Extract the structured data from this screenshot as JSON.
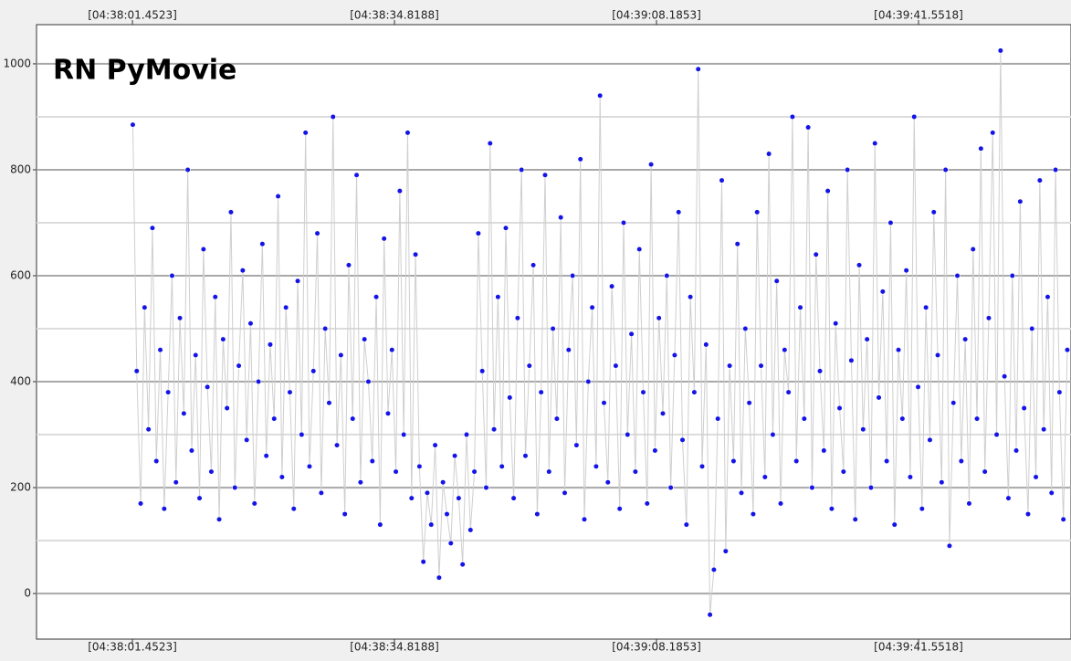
{
  "chart_data": {
    "type": "scatter",
    "title": "RN PyMovie",
    "xlim": [
      16669.24,
      16800.97
    ],
    "xticks": [
      {
        "value": 16681.4523,
        "label": "[04:38:01.4523]"
      },
      {
        "value": 16714.8188,
        "label": "[04:38:34.8188]"
      },
      {
        "value": 16748.1853,
        "label": "[04:39:08.1853]"
      },
      {
        "value": 16781.5518,
        "label": "[04:39:41.5518]"
      }
    ],
    "ylim": [
      -86,
      1074
    ],
    "yticks": [
      0,
      200,
      400,
      600,
      800,
      1000
    ],
    "minor_yticks": [
      100,
      300,
      500,
      700,
      900
    ],
    "grid": true,
    "series": [
      {
        "color": "#1414e6",
        "line_color": "#cfcfcf",
        "x": [
          16681.5,
          16682,
          16682.5,
          16683,
          16683.5,
          16684,
          16684.5,
          16685,
          16685.5,
          16686,
          16686.5,
          16687,
          16687.5,
          16688,
          16688.5,
          16689,
          16689.5,
          16690,
          16690.5,
          16691,
          16691.5,
          16692,
          16692.5,
          16693,
          16693.5,
          16694,
          16694.5,
          16695,
          16695.5,
          16696,
          16696.5,
          16697,
          16697.5,
          16698,
          16698.5,
          16699,
          16699.5,
          16700,
          16700.5,
          16701,
          16701.5,
          16702,
          16702.5,
          16703,
          16703.5,
          16704,
          16704.5,
          16705,
          16705.5,
          16706,
          16706.5,
          16707,
          16707.5,
          16708,
          16708.5,
          16709,
          16709.5,
          16710,
          16710.5,
          16711,
          16711.5,
          16712,
          16712.5,
          16713,
          16713.5,
          16714,
          16714.5,
          16715,
          16715.5,
          16716,
          16716.5,
          16717,
          16717.5,
          16718,
          16718.5,
          16719,
          16719.5,
          16720,
          16720.5,
          16721,
          16721.5,
          16722,
          16722.5,
          16723,
          16723.5,
          16724,
          16724.5,
          16725,
          16725.5,
          16726,
          16726.5,
          16727,
          16727.5,
          16728,
          16728.5,
          16729,
          16729.5,
          16730,
          16730.5,
          16731,
          16731.5,
          16732,
          16732.5,
          16733,
          16733.5,
          16734,
          16734.5,
          16735,
          16735.5,
          16736,
          16736.5,
          16737,
          16737.5,
          16738,
          16738.5,
          16739,
          16739.5,
          16740,
          16740.5,
          16741,
          16741.5,
          16742,
          16742.5,
          16743,
          16743.5,
          16744,
          16744.5,
          16745,
          16745.5,
          16746,
          16746.5,
          16747,
          16747.5,
          16748,
          16748.5,
          16749,
          16749.5,
          16750,
          16750.5,
          16751,
          16751.5,
          16752,
          16752.5,
          16753,
          16753.5,
          16754,
          16754.5,
          16755,
          16755.5,
          16756,
          16756.5,
          16757,
          16757.5,
          16758,
          16758.5,
          16759,
          16759.5,
          16760,
          16760.5,
          16761,
          16761.5,
          16762,
          16762.5,
          16763,
          16763.5,
          16764,
          16764.5,
          16765,
          16765.5,
          16766,
          16766.5,
          16767,
          16767.5,
          16768,
          16768.5,
          16769,
          16769.5,
          16770,
          16770.5,
          16771,
          16771.5,
          16772,
          16772.5,
          16773,
          16773.5,
          16774,
          16774.5,
          16775,
          16775.5,
          16776,
          16776.5,
          16777,
          16777.5,
          16778,
          16778.5,
          16779,
          16779.5,
          16780,
          16780.5,
          16781,
          16781.5,
          16782,
          16782.5,
          16783,
          16783.5,
          16784,
          16784.5,
          16785,
          16785.5,
          16786,
          16786.5,
          16787,
          16787.5,
          16788,
          16788.5,
          16789,
          16789.5,
          16790,
          16790.5,
          16791,
          16791.5,
          16792,
          16792.5,
          16793,
          16793.5,
          16794,
          16794.5,
          16795,
          16795.5,
          16796,
          16796.5,
          16797,
          16797.5,
          16798,
          16798.5,
          16799,
          16799.5,
          16800,
          16800.5
        ],
        "values": [
          885,
          420,
          170,
          540,
          310,
          690,
          250,
          460,
          160,
          380,
          600,
          210,
          520,
          340,
          800,
          270,
          450,
          180,
          650,
          390,
          230,
          560,
          140,
          480,
          350,
          720,
          200,
          430,
          610,
          290,
          510,
          170,
          400,
          660,
          260,
          470,
          330,
          750,
          220,
          540,
          380,
          160,
          590,
          300,
          870,
          240,
          420,
          680,
          190,
          500,
          360,
          900,
          280,
          450,
          150,
          620,
          330,
          790,
          210,
          480,
          400,
          250,
          560,
          130,
          670,
          340,
          460,
          230,
          760,
          300,
          870,
          180,
          640,
          240,
          60,
          190,
          130,
          280,
          30,
          210,
          150,
          95,
          260,
          180,
          55,
          300,
          120,
          230,
          680,
          420,
          200,
          850,
          310,
          560,
          240,
          690,
          370,
          180,
          520,
          800,
          260,
          430,
          620,
          150,
          380,
          790,
          230,
          500,
          330,
          710,
          190,
          460,
          600,
          280,
          820,
          140,
          400,
          540,
          240,
          940,
          360,
          210,
          580,
          430,
          160,
          700,
          300,
          490,
          230,
          650,
          380,
          170,
          810,
          270,
          520,
          340,
          600,
          200,
          450,
          720,
          290,
          130,
          560,
          380,
          990,
          240,
          470,
          -40,
          45,
          330,
          780,
          80,
          430,
          250,
          660,
          190,
          500,
          360,
          150,
          720,
          430,
          220,
          830,
          300,
          590,
          170,
          460,
          380,
          900,
          250,
          540,
          330,
          880,
          200,
          640,
          420,
          270,
          760,
          160,
          510,
          350,
          230,
          800,
          440,
          140,
          620,
          310,
          480,
          200,
          850,
          370,
          570,
          250,
          700,
          130,
          460,
          330,
          610,
          220,
          900,
          390,
          160,
          540,
          290,
          720,
          450,
          210,
          800,
          90,
          360,
          600,
          250,
          480,
          170,
          650,
          330,
          840,
          230,
          520,
          870,
          300,
          1025,
          410,
          180,
          600,
          270,
          740,
          350,
          150,
          500,
          220,
          780,
          310,
          560,
          190,
          800,
          380,
          140,
          460
        ]
      }
    ]
  }
}
